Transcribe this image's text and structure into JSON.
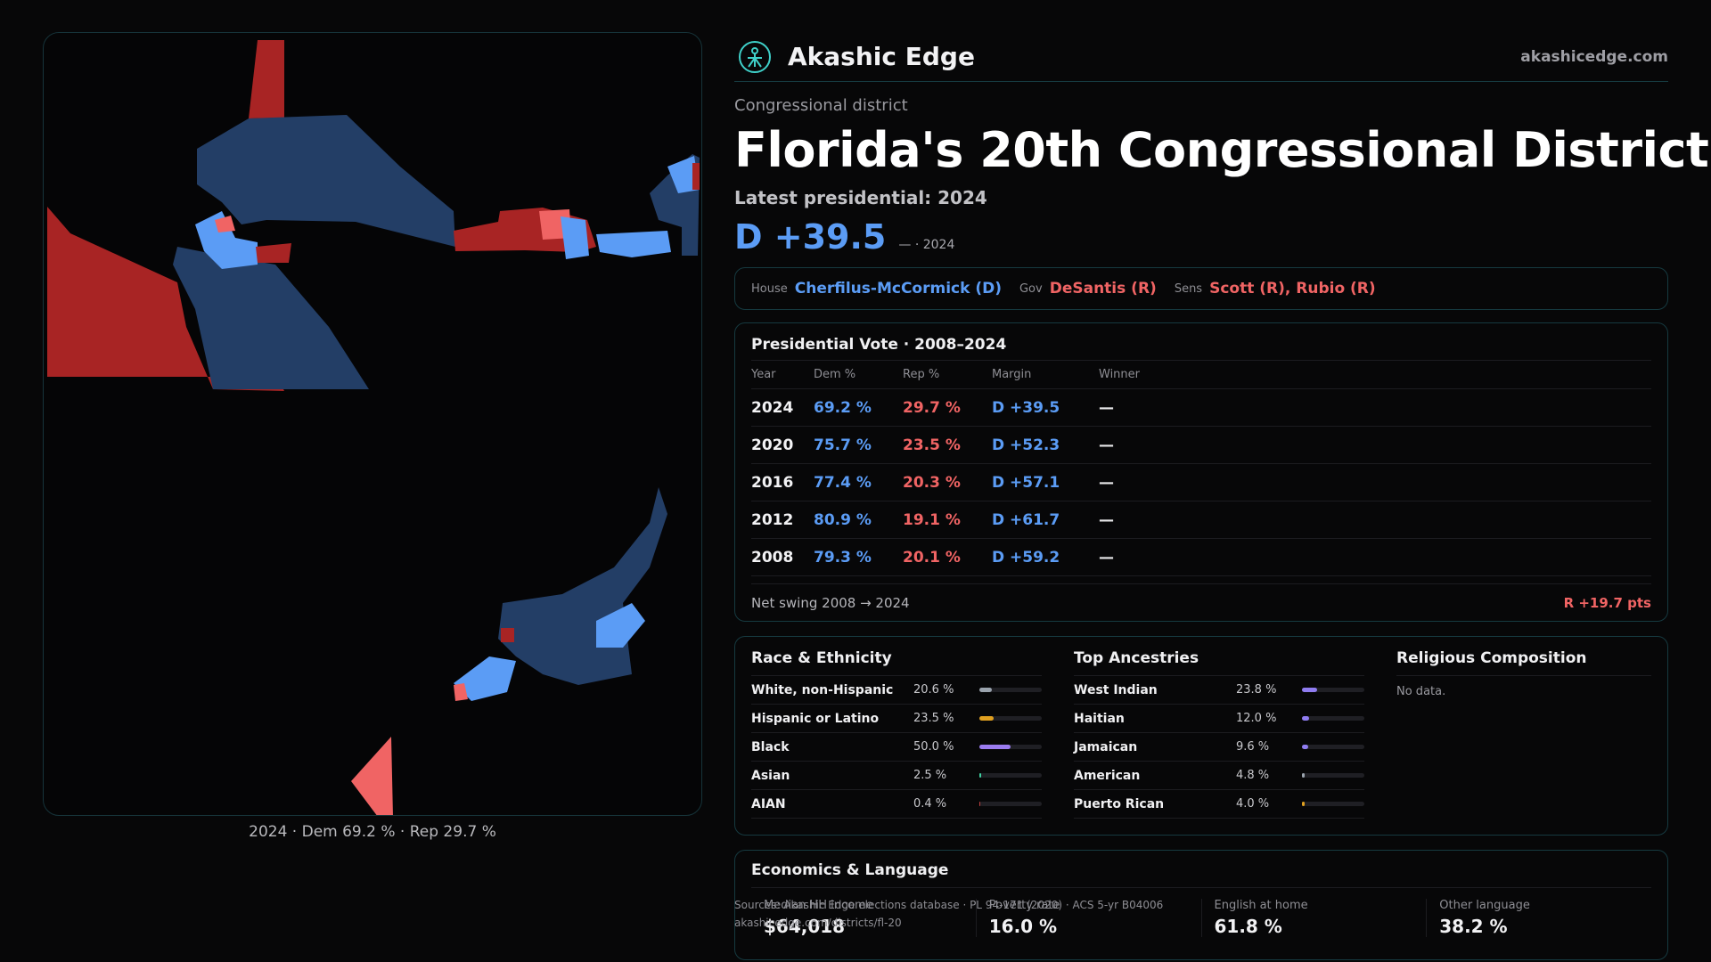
{
  "brand": {
    "name": "Akashic Edge",
    "url": "akashicedge.com",
    "accent": "#3fd0c9"
  },
  "header": {
    "kicker": "Congressional district",
    "title": "Florida's 20th Congressional District",
    "latest": "Latest presidential: 2024",
    "margin": "D +39.5",
    "margin_sub": "— · 2024"
  },
  "officials": {
    "house_label": "House",
    "house": "Cherfilus-McCormick (D)",
    "gov_label": "Gov",
    "gov": "DeSantis (R)",
    "sens_label": "Sens",
    "sens": "Scott (R), Rubio (R)"
  },
  "presidential": {
    "title": "Presidential Vote · 2008–2024",
    "columns": [
      "Year",
      "Dem %",
      "Rep %",
      "Margin",
      "Winner"
    ],
    "rows": [
      {
        "year": "2024",
        "dem": "69.2 %",
        "rep": "29.7 %",
        "margin": "D +39.5",
        "winner": "—"
      },
      {
        "year": "2020",
        "dem": "75.7 %",
        "rep": "23.5 %",
        "margin": "D +52.3",
        "winner": "—"
      },
      {
        "year": "2016",
        "dem": "77.4 %",
        "rep": "20.3 %",
        "margin": "D +57.1",
        "winner": "—"
      },
      {
        "year": "2012",
        "dem": "80.9 %",
        "rep": "19.1 %",
        "margin": "D +61.7",
        "winner": "—"
      },
      {
        "year": "2008",
        "dem": "79.3 %",
        "rep": "20.1 %",
        "margin": "D +59.2",
        "winner": "—"
      }
    ],
    "net_label": "Net swing 2008 → 2024",
    "net_value": "R +19.7 pts"
  },
  "race": {
    "title": "Race & Ethnicity",
    "rows": [
      {
        "label": "White, non-Hispanic",
        "value": "20.6 %",
        "pct": 20.6,
        "color": "#9aa3ad"
      },
      {
        "label": "Hispanic or Latino",
        "value": "23.5 %",
        "pct": 23.5,
        "color": "#e0a020"
      },
      {
        "label": "Black",
        "value": "50.0 %",
        "pct": 50.0,
        "color": "#9b7cf0"
      },
      {
        "label": "Asian",
        "value": "2.5 %",
        "pct": 2.5,
        "color": "#3fd0a0"
      },
      {
        "label": "AIAN",
        "value": "0.4 %",
        "pct": 0.4,
        "color": "#c04040"
      }
    ]
  },
  "ancestry": {
    "title": "Top Ancestries",
    "rows": [
      {
        "label": "West Indian",
        "value": "23.8 %",
        "pct": 23.8,
        "color": "#8f7cf0"
      },
      {
        "label": "Haitian",
        "value": "12.0 %",
        "pct": 12.0,
        "color": "#8f7cf0"
      },
      {
        "label": "Jamaican",
        "value": "9.6 %",
        "pct": 9.6,
        "color": "#8f7cf0"
      },
      {
        "label": "American",
        "value": "4.8 %",
        "pct": 4.8,
        "color": "#9aa3ad"
      },
      {
        "label": "Puerto Rican",
        "value": "4.0 %",
        "pct": 4.0,
        "color": "#e0a020"
      }
    ]
  },
  "religion": {
    "title": "Religious Composition",
    "empty": "No data."
  },
  "economics": {
    "title": "Economics & Language",
    "cells": [
      {
        "label": "Median HH income",
        "value": "$64,018"
      },
      {
        "label": "Poverty rate",
        "value": "16.0 %"
      },
      {
        "label": "English at home",
        "value": "61.8 %"
      },
      {
        "label": "Other language",
        "value": "38.2 %"
      }
    ]
  },
  "sources": {
    "line1": "Sources: Akashic Edge elections database · PL 94-171 (2020) · ACS 5-yr B04006",
    "line2": "akashicedge.com/districts/fl-20"
  },
  "map": {
    "caption": "2024 · Dem 69.2 % · Rep 29.7 %",
    "colors": {
      "dem_dark": "#233e66",
      "dem_light": "#5b9cf5",
      "rep_dark": "#a82424",
      "rep_light": "#f06464"
    }
  }
}
